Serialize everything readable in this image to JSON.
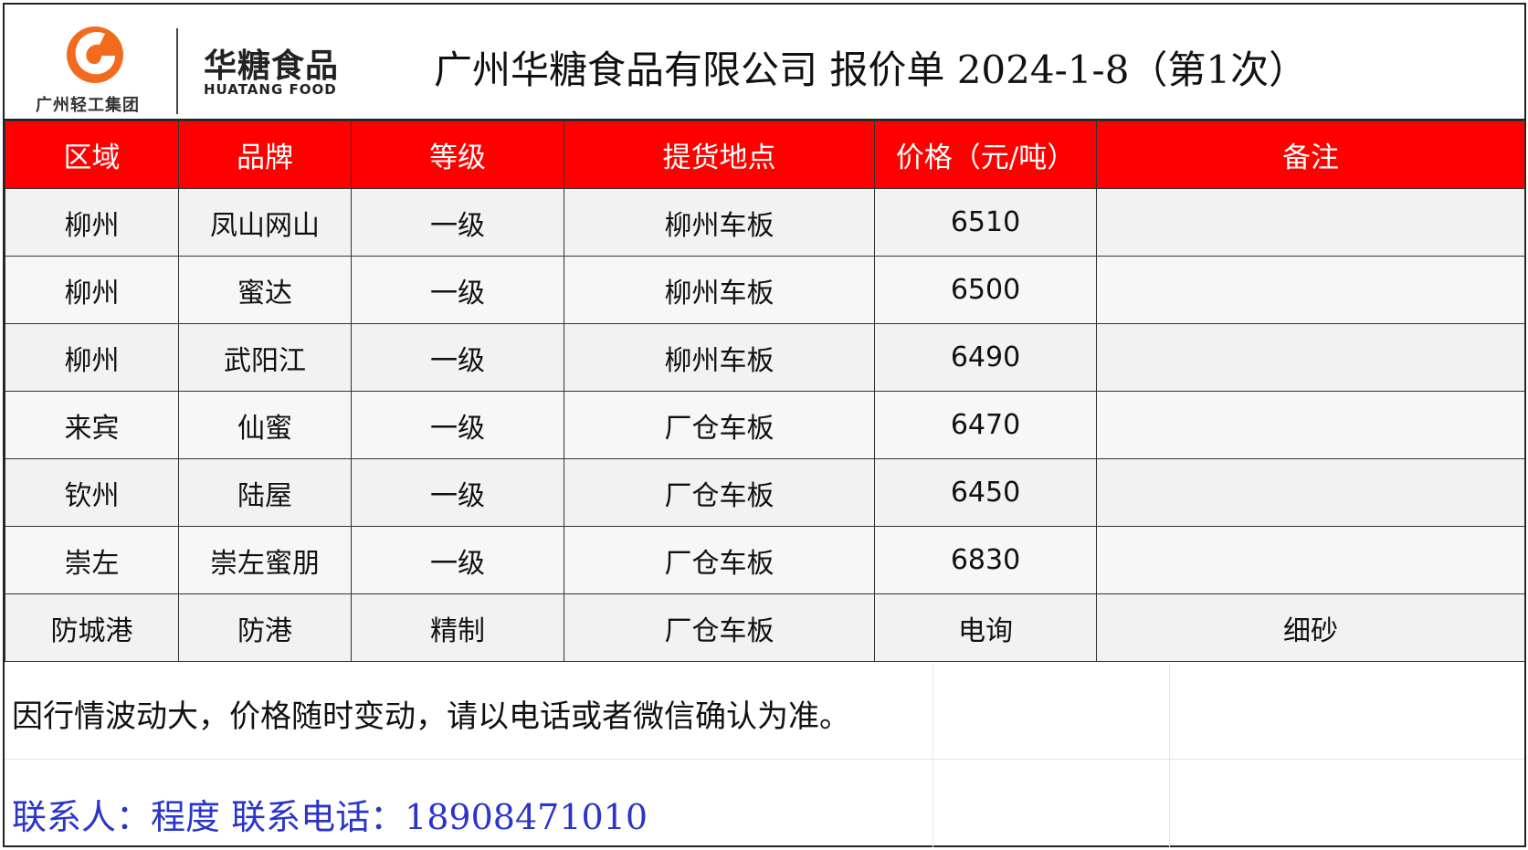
{
  "header": {
    "group_name": "广州轻工集团",
    "brand_cn": "华糖食品",
    "brand_en": "HUATANG FOOD",
    "title": "广州华糖食品有限公司 报价单 2024-1-8（第1次）"
  },
  "table": {
    "columns": [
      "区域",
      "品牌",
      "等级",
      "提货地点",
      "价格（元/吨）",
      "备注"
    ],
    "rows": [
      {
        "region": "柳州",
        "brand": "凤山网山",
        "grade": "一级",
        "pickup": "柳州车板",
        "price": "6510",
        "note": ""
      },
      {
        "region": "柳州",
        "brand": "蜜达",
        "grade": "一级",
        "pickup": "柳州车板",
        "price": "6500",
        "note": ""
      },
      {
        "region": "柳州",
        "brand": "武阳江",
        "grade": "一级",
        "pickup": "柳州车板",
        "price": "6490",
        "note": ""
      },
      {
        "region": "来宾",
        "brand": "仙蜜",
        "grade": "一级",
        "pickup": "厂仓车板",
        "price": "6470",
        "note": ""
      },
      {
        "region": "钦州",
        "brand": "陆屋",
        "grade": "一级",
        "pickup": "厂仓车板",
        "price": "6450",
        "note": ""
      },
      {
        "region": "崇左",
        "brand": "崇左蜜朋",
        "grade": "一级",
        "pickup": "厂仓车板",
        "price": "6830",
        "note": ""
      },
      {
        "region": "防城港",
        "brand": "防港",
        "grade": "精制",
        "pickup": "厂仓车板",
        "price": "电询",
        "note": "细砂"
      }
    ]
  },
  "footer": {
    "notice": "因行情波动大，价格随时变动，请以电话或者微信确认为准。",
    "contact": "联系人：程度 联系电话：18908471010"
  },
  "colors": {
    "header_red": "#ff0000",
    "logo_orange": "#f26b1d",
    "contact_blue": "#2a35c9"
  }
}
